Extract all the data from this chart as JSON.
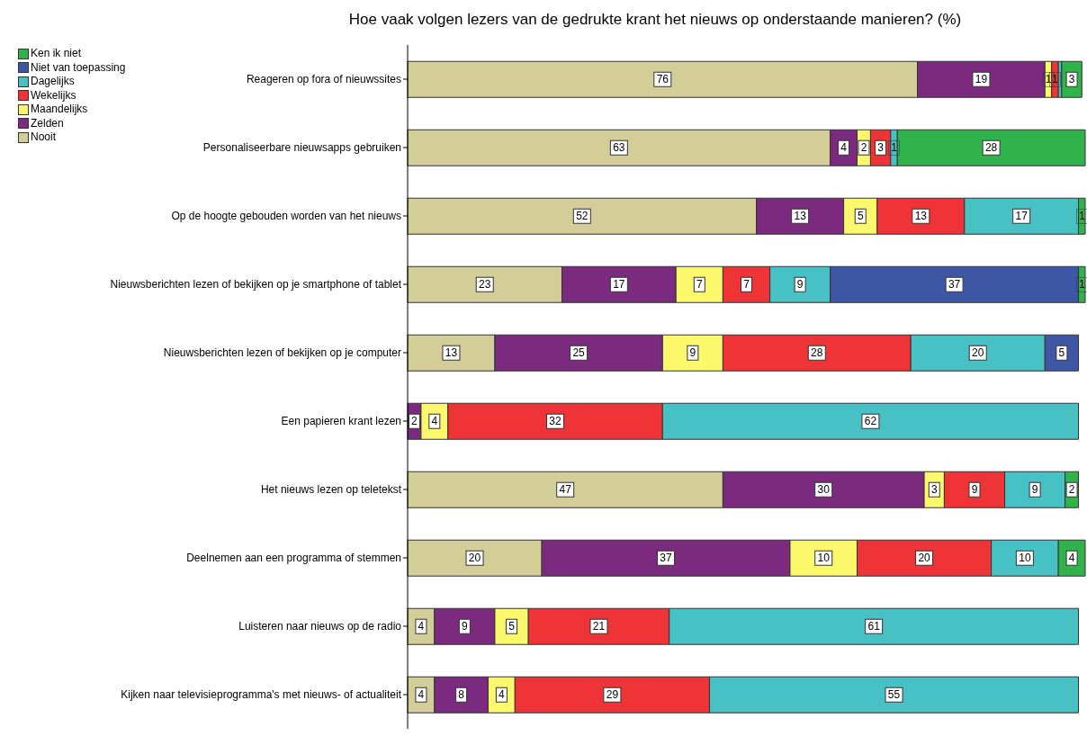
{
  "chart_data": {
    "type": "bar",
    "orientation": "horizontal",
    "stacked": true,
    "title": "Hoe vaak volgen lezers van de gedrukte krant het nieuws op onderstaande manieren? (%)",
    "legend": "top left",
    "grid": false,
    "tick_labels": "y",
    "categories": [
      "Reageren op fora of nieuwssites",
      "Personaliseerbare nieuwsapps gebruiken",
      "Op de hoogte gebouden worden van het nieuws",
      "Nieuwsberichten lezen of bekijken op je smartphone of tablet",
      "Nieuwsberichten lezen of bekijken op je computer",
      "Een papieren krant lezen",
      "Het nieuws lezen op teletekst",
      "Deelnemen aan een programma of stemmen",
      "Luisteren naar nieuws op de radio",
      "Kijken naar televisieprogramma's met nieuws- of actualiteit"
    ],
    "series": [
      {
        "name": "Nooit",
        "color": "#d3cd98",
        "values": [
          76,
          63,
          52,
          23,
          13,
          null,
          47,
          20,
          4,
          4
        ],
        "value_labels": [
          "76",
          "63",
          "52",
          "23",
          "13",
          null,
          "47",
          "20",
          "4",
          "4"
        ]
      },
      {
        "name": "Zelden",
        "color": "#7b2a80",
        "values": [
          19,
          4,
          13,
          17,
          25,
          2,
          30,
          37,
          9,
          8
        ],
        "value_labels": [
          "19",
          "4",
          "13",
          "17",
          "25",
          "2",
          "30",
          "37",
          "9",
          "8"
        ]
      },
      {
        "name": "Maandelijks",
        "color": "#fbf86b",
        "values": [
          1,
          2,
          5,
          7,
          9,
          4,
          3,
          10,
          5,
          4
        ],
        "value_labels": [
          "1",
          "2",
          "5",
          "7",
          "9",
          "4",
          "3",
          "10",
          "5",
          "4"
        ]
      },
      {
        "name": "Wekelijks",
        "color": "#ef3438",
        "values": [
          1,
          3,
          13,
          7,
          28,
          32,
          9,
          20,
          21,
          29
        ],
        "value_labels": [
          "1",
          "3",
          "13",
          "7",
          "28",
          "32",
          "9",
          "20",
          "21",
          "29"
        ]
      },
      {
        "name": "Dagelijks",
        "color": "#48c1c4",
        "values": [
          0.5,
          1,
          17,
          9,
          20,
          62,
          9,
          10,
          61,
          55
        ],
        "value_labels": [
          null,
          "1",
          "17",
          "9",
          "20",
          "62",
          "9",
          "10",
          "61",
          "55"
        ]
      },
      {
        "name": "Niet van toepassing",
        "color": "#3d57a6",
        "values": [
          null,
          null,
          null,
          37,
          5,
          null,
          null,
          null,
          null,
          null
        ],
        "value_labels": [
          null,
          null,
          null,
          "37",
          "5",
          null,
          null,
          null,
          null,
          null
        ]
      },
      {
        "name": "Ken ik niet",
        "color": "#2fb34a",
        "values": [
          3,
          28,
          1,
          1,
          null,
          null,
          2,
          4,
          null,
          null
        ],
        "value_labels": [
          "3",
          "28",
          "1",
          "1",
          null,
          null,
          "2",
          "4",
          null,
          null
        ]
      }
    ]
  }
}
